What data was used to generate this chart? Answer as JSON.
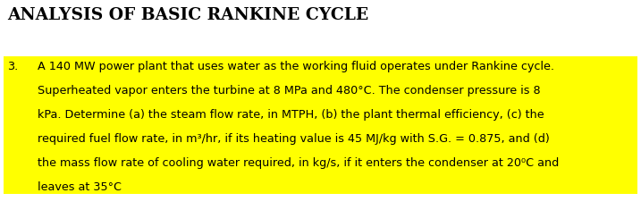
{
  "title": "ANALYSIS OF BASIC RANKINE CYCLE",
  "title_fontsize": 13.5,
  "body_lines": [
    "A 140 MW power plant that uses water as the working fluid operates under Rankine cycle.",
    "Superheated vapor enters the turbine at 8 MPa and 480°C. The condenser pressure is 8",
    "kPa. Determine (a) the steam flow rate, in MTPH, (b) the plant thermal efficiency, (c) the",
    "required fuel flow rate, in m³/hr, if its heating value is 45 MJ/kg with S.G. = 0.875, and (d)",
    "the mass flow rate of cooling water required, in kg/s, if it enters the condenser at 20⁰C and",
    "leaves at 35°C"
  ],
  "highlight_color": "#FFFF00",
  "background_color": "#FFFFFF",
  "text_color": "#000000",
  "body_fontsize": 9.2,
  "fig_width": 7.17,
  "fig_height": 2.35,
  "dpi": 100
}
